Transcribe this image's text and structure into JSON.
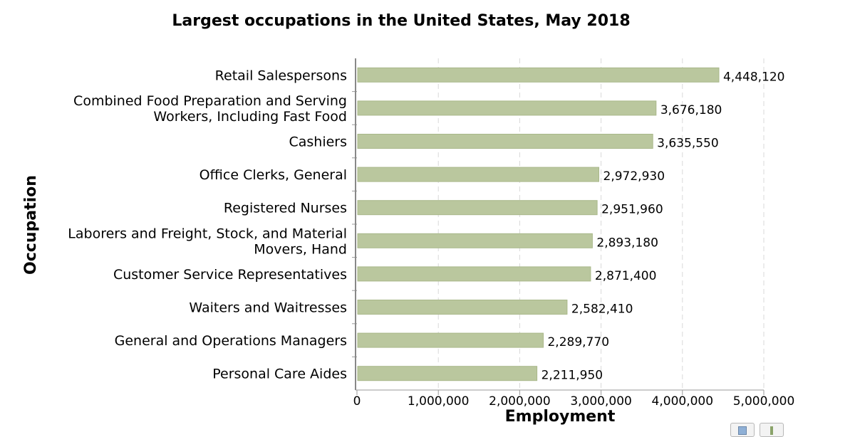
{
  "chart_data": {
    "type": "bar",
    "orientation": "horizontal",
    "title": "Largest occupations in the United States, May 2018",
    "xlabel": "Employment",
    "ylabel": "Occupation",
    "xlim": [
      0,
      5000000
    ],
    "xticks": [
      0,
      1000000,
      2000000,
      3000000,
      4000000,
      5000000
    ],
    "xtick_labels": [
      "0",
      "1,000,000",
      "2,000,000",
      "3,000,000",
      "4,000,000",
      "5,000,000"
    ],
    "grid": "vertical dashed",
    "bar_color": "#bac79e",
    "categories": [
      [
        "Retail Salespersons"
      ],
      [
        "Combined Food Preparation and Serving",
        "Workers, Including Fast Food"
      ],
      [
        "Cashiers"
      ],
      [
        "Office Clerks, General"
      ],
      [
        "Registered Nurses"
      ],
      [
        "Laborers and Freight, Stock, and Material",
        "Movers, Hand"
      ],
      [
        "Customer Service Representatives"
      ],
      [
        "Waiters and Waitresses"
      ],
      [
        "General and Operations Managers"
      ],
      [
        "Personal Care Aides"
      ]
    ],
    "values": [
      4448120,
      3676180,
      3635550,
      2972930,
      2951960,
      2893180,
      2871400,
      2582410,
      2289770,
      2211950
    ],
    "value_labels": [
      "4,448,120",
      "3,676,180",
      "3,635,550",
      "2,972,930",
      "2,951,960",
      "2,893,180",
      "2,871,400",
      "2,582,410",
      "2,289,770",
      "2,211,950"
    ]
  }
}
